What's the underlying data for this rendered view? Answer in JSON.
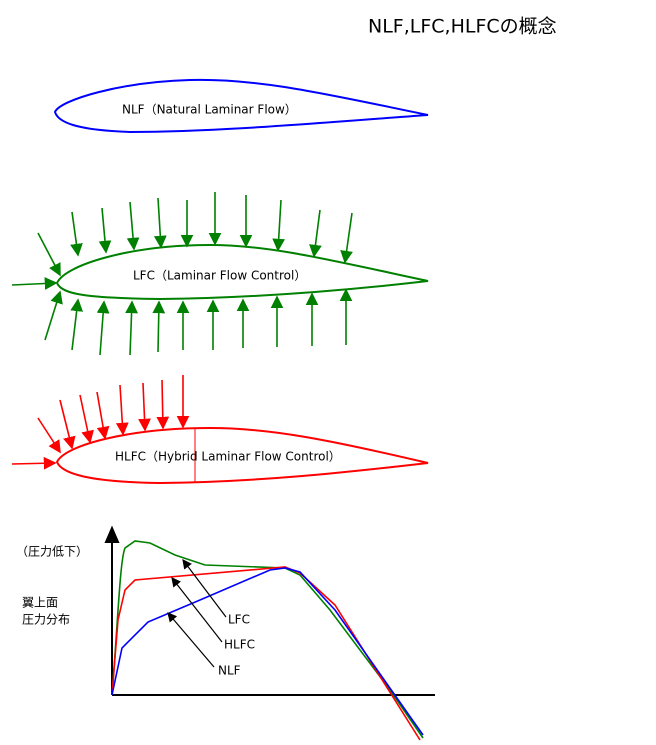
{
  "header": {
    "title": "NLF,LFC,HLFCの概念"
  },
  "airfoils": [
    {
      "label": "NLF（Natural Laminar Flow）"
    },
    {
      "label": "LFC（Laminar Flow Control）"
    },
    {
      "label": "HLFC（Hybrid Laminar Flow Control）"
    }
  ],
  "graph": {
    "y_label_note": "（圧力低下）",
    "y_label_1": "翼上面",
    "y_label_2": "圧力分布",
    "curve_labels": [
      "LFC",
      "HLFC",
      "NLF"
    ]
  }
}
